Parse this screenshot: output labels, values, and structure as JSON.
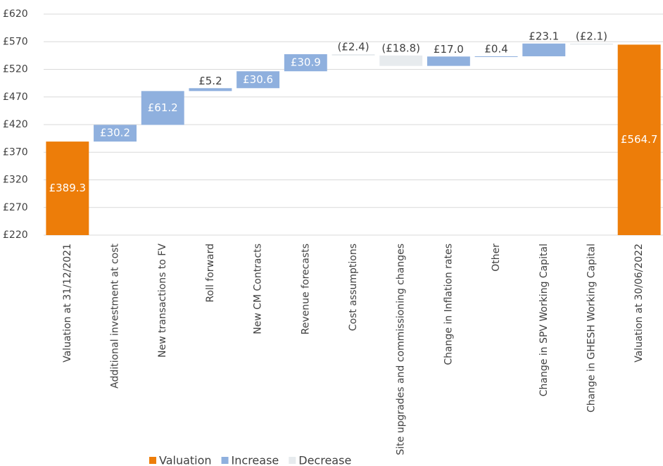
{
  "chart_data": {
    "type": "waterfall",
    "categories": [
      "Valuation at 31/12/2021",
      "Additional investment at cost",
      "New transactions to FV",
      "Roll forward",
      "New CM Contracts",
      "Revenue forecasts",
      "Cost assumptions",
      "Site upgrades and commissioning changes",
      "Change in Inflation rates",
      "Other",
      "Change in SPV Working Capital",
      "Change in GHESH Working Capital",
      "Valuation at 30/06/2022"
    ],
    "series": [
      {
        "name": "Valuation",
        "color": "#ED7D09",
        "values": [
          389.3,
          null,
          null,
          null,
          null,
          null,
          null,
          null,
          null,
          null,
          null,
          null,
          564.7
        ],
        "value_labels": [
          "£389.3",
          null,
          null,
          null,
          null,
          null,
          null,
          null,
          null,
          null,
          null,
          null,
          "£564.7"
        ]
      },
      {
        "name": "Increase",
        "color": "#8FB0DE",
        "values": [
          null,
          30.2,
          61.2,
          5.2,
          30.6,
          30.9,
          null,
          null,
          17.0,
          0.4,
          23.1,
          null,
          null
        ],
        "value_labels": [
          null,
          "£30.2",
          "£61.2",
          "£5.2",
          "£30.6",
          "£30.9",
          null,
          null,
          "£17.0",
          "£0.4",
          "£23.1",
          null,
          null
        ]
      },
      {
        "name": "Decrease",
        "color": "#E7EBEE",
        "values": [
          null,
          null,
          null,
          null,
          null,
          null,
          -2.4,
          -18.8,
          null,
          null,
          null,
          -2.1,
          null
        ],
        "value_labels": [
          null,
          null,
          null,
          null,
          null,
          null,
          "(£2.4)",
          "(£18.8)",
          null,
          null,
          null,
          "(£2.1)",
          null
        ]
      }
    ],
    "ylim": [
      220,
      620
    ],
    "yticks": [
      {
        "value": 220,
        "label": "£220"
      },
      {
        "value": 270,
        "label": "£270"
      },
      {
        "value": 320,
        "label": "£320"
      },
      {
        "value": 370,
        "label": "£370"
      },
      {
        "value": 420,
        "label": "£420"
      },
      {
        "value": 470,
        "label": "£470"
      },
      {
        "value": 520,
        "label": "£520"
      },
      {
        "value": 570,
        "label": "£570"
      },
      {
        "value": 620,
        "label": "£620"
      }
    ],
    "grid": true,
    "legend": "bottom"
  }
}
